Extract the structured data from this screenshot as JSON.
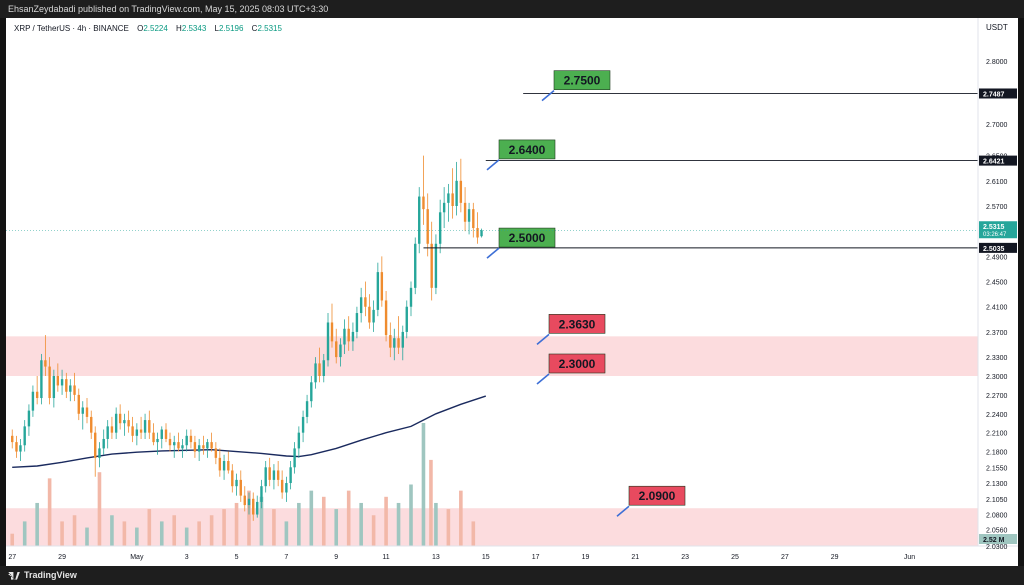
{
  "header": {
    "publisher_line": "EhsanZeydabadi published on TradingView.com, May 15, 2025 08:03 UTC+3:30"
  },
  "legend": {
    "symbol": "XRP / TetherUS · 4h · BINANCE",
    "open_label": "O",
    "open": "2.5224",
    "high_label": "H",
    "high": "2.5343",
    "low_label": "L",
    "low": "2.5196",
    "close_label": "C",
    "close": "2.5315"
  },
  "footer": {
    "brand": "TradingView"
  },
  "colors": {
    "up": "#26a69a",
    "down": "#ef8c2f",
    "ma": "#1a2a5e",
    "zone": "#fbd6d8",
    "label_green": "#4caf50",
    "label_red": "#e84a5f",
    "volume_up": "#9fc6c0",
    "volume_down": "#f2b8a8"
  },
  "chart_data": {
    "type": "candlestick",
    "symbol": "XRP / TetherUS",
    "timeframe": "4h",
    "exchange": "BINANCE",
    "currency": "USDT",
    "ylim": [
      2.03,
      2.84
    ],
    "y_ticks": [
      "2.8000",
      "2.7500",
      "2.7000",
      "2.6500",
      "2.6100",
      "2.5700",
      "2.5300",
      "2.4900",
      "2.4500",
      "2.4100",
      "2.3700",
      "2.3300",
      "2.3000",
      "2.2700",
      "2.2400",
      "2.2100",
      "2.1800",
      "2.1550",
      "2.1300",
      "2.1050",
      "2.0800",
      "2.0560",
      "2.0300"
    ],
    "x_ticks": [
      "27",
      "29",
      "May",
      "3",
      "5",
      "7",
      "9",
      "11",
      "13",
      "15",
      "17",
      "19",
      "21",
      "23",
      "25",
      "27",
      "29",
      "Jun"
    ],
    "x_tick_days": [
      -4,
      -2,
      1,
      3,
      5,
      7,
      9,
      11,
      13,
      15,
      17,
      19,
      21,
      23,
      25,
      27,
      29,
      32
    ],
    "x_range_days": [
      -4.25,
      34.75
    ],
    "candles": [
      [
        -4.0,
        2.205,
        2.215,
        2.185,
        2.195
      ],
      [
        -3.83,
        2.195,
        2.205,
        2.17,
        2.18
      ],
      [
        -3.67,
        2.18,
        2.2,
        2.165,
        2.19
      ],
      [
        -3.5,
        2.19,
        2.23,
        2.18,
        2.22
      ],
      [
        -3.33,
        2.22,
        2.255,
        2.205,
        2.245
      ],
      [
        -3.17,
        2.245,
        2.285,
        2.235,
        2.275
      ],
      [
        -3.0,
        2.275,
        2.3,
        2.255,
        2.265
      ],
      [
        -2.83,
        2.265,
        2.335,
        2.255,
        2.325
      ],
      [
        -2.67,
        2.325,
        2.365,
        2.3,
        2.315
      ],
      [
        -2.5,
        2.315,
        2.33,
        2.255,
        2.265
      ],
      [
        -2.33,
        2.265,
        2.31,
        2.25,
        2.3
      ],
      [
        -2.17,
        2.3,
        2.32,
        2.275,
        2.285
      ],
      [
        -2.0,
        2.285,
        2.31,
        2.27,
        2.295
      ],
      [
        -1.83,
        2.295,
        2.305,
        2.265,
        2.275
      ],
      [
        -1.67,
        2.275,
        2.295,
        2.26,
        2.285
      ],
      [
        -1.5,
        2.285,
        2.305,
        2.26,
        2.27
      ],
      [
        -1.33,
        2.27,
        2.28,
        2.23,
        2.24
      ],
      [
        -1.17,
        2.24,
        2.26,
        2.215,
        2.25
      ],
      [
        -1.0,
        2.25,
        2.265,
        2.225,
        2.235
      ],
      [
        -0.83,
        2.235,
        2.245,
        2.2,
        2.21
      ],
      [
        -0.67,
        2.21,
        2.22,
        2.14,
        2.17
      ],
      [
        -0.5,
        2.17,
        2.195,
        2.155,
        2.185
      ],
      [
        -0.33,
        2.185,
        2.215,
        2.175,
        2.2
      ],
      [
        -0.17,
        2.2,
        2.23,
        2.185,
        2.22
      ],
      [
        0.0,
        2.22,
        2.235,
        2.2,
        2.21
      ],
      [
        0.17,
        2.21,
        2.25,
        2.2,
        2.24
      ],
      [
        0.33,
        2.24,
        2.255,
        2.215,
        2.225
      ],
      [
        0.5,
        2.225,
        2.24,
        2.205,
        2.23
      ],
      [
        0.67,
        2.23,
        2.245,
        2.21,
        2.22
      ],
      [
        0.83,
        2.22,
        2.235,
        2.195,
        2.205
      ],
      [
        1.0,
        2.205,
        2.225,
        2.19,
        2.215
      ],
      [
        1.17,
        2.215,
        2.235,
        2.2,
        2.21
      ],
      [
        1.33,
        2.21,
        2.24,
        2.2,
        2.23
      ],
      [
        1.5,
        2.23,
        2.245,
        2.2,
        2.21
      ],
      [
        1.67,
        2.21,
        2.225,
        2.19,
        2.195
      ],
      [
        1.83,
        2.195,
        2.21,
        2.175,
        2.2
      ],
      [
        2.0,
        2.2,
        2.22,
        2.185,
        2.215
      ],
      [
        2.17,
        2.215,
        2.225,
        2.195,
        2.2
      ],
      [
        2.33,
        2.2,
        2.21,
        2.18,
        2.19
      ],
      [
        2.5,
        2.19,
        2.205,
        2.17,
        2.195
      ],
      [
        2.67,
        2.195,
        2.21,
        2.18,
        2.185
      ],
      [
        2.83,
        2.185,
        2.2,
        2.17,
        2.19
      ],
      [
        3.0,
        2.19,
        2.215,
        2.18,
        2.205
      ],
      [
        3.17,
        2.205,
        2.215,
        2.185,
        2.195
      ],
      [
        3.33,
        2.195,
        2.205,
        2.17,
        2.18
      ],
      [
        3.5,
        2.18,
        2.2,
        2.165,
        2.19
      ],
      [
        3.67,
        2.19,
        2.205,
        2.175,
        2.185
      ],
      [
        3.83,
        2.185,
        2.2,
        2.17,
        2.195
      ],
      [
        4.0,
        2.195,
        2.21,
        2.18,
        2.185
      ],
      [
        4.17,
        2.185,
        2.195,
        2.16,
        2.17
      ],
      [
        4.33,
        2.17,
        2.185,
        2.14,
        2.15
      ],
      [
        4.5,
        2.15,
        2.175,
        2.135,
        2.165
      ],
      [
        4.67,
        2.165,
        2.18,
        2.145,
        2.15
      ],
      [
        4.83,
        2.15,
        2.16,
        2.115,
        2.125
      ],
      [
        5.0,
        2.125,
        2.145,
        2.11,
        2.135
      ],
      [
        5.17,
        2.135,
        2.15,
        2.1,
        2.11
      ],
      [
        5.33,
        2.11,
        2.125,
        2.085,
        2.095
      ],
      [
        5.5,
        2.095,
        2.115,
        2.08,
        2.105
      ],
      [
        5.67,
        2.105,
        2.115,
        2.07,
        2.08
      ],
      [
        5.83,
        2.08,
        2.11,
        2.075,
        2.1
      ],
      [
        6.0,
        2.1,
        2.135,
        2.09,
        2.125
      ],
      [
        6.17,
        2.125,
        2.165,
        2.115,
        2.155
      ],
      [
        6.33,
        2.155,
        2.17,
        2.125,
        2.135
      ],
      [
        6.5,
        2.135,
        2.16,
        2.12,
        2.15
      ],
      [
        6.67,
        2.15,
        2.165,
        2.125,
        2.135
      ],
      [
        6.83,
        2.135,
        2.15,
        2.105,
        2.115
      ],
      [
        7.0,
        2.115,
        2.14,
        2.1,
        2.13
      ],
      [
        7.17,
        2.13,
        2.165,
        2.12,
        2.155
      ],
      [
        7.33,
        2.155,
        2.195,
        2.145,
        2.185
      ],
      [
        7.5,
        2.185,
        2.22,
        2.17,
        2.21
      ],
      [
        7.67,
        2.21,
        2.245,
        2.195,
        2.235
      ],
      [
        7.83,
        2.235,
        2.27,
        2.225,
        2.26
      ],
      [
        8.0,
        2.26,
        2.3,
        2.25,
        2.29
      ],
      [
        8.17,
        2.29,
        2.33,
        2.28,
        2.32
      ],
      [
        8.33,
        2.32,
        2.345,
        2.29,
        2.3
      ],
      [
        8.5,
        2.3,
        2.335,
        2.29,
        2.325
      ],
      [
        8.67,
        2.325,
        2.4,
        2.315,
        2.385
      ],
      [
        8.83,
        2.385,
        2.415,
        2.345,
        2.355
      ],
      [
        9.0,
        2.355,
        2.375,
        2.32,
        2.33
      ],
      [
        9.17,
        2.33,
        2.36,
        2.315,
        2.35
      ],
      [
        9.33,
        2.35,
        2.39,
        2.335,
        2.375
      ],
      [
        9.5,
        2.375,
        2.395,
        2.34,
        2.355
      ],
      [
        9.67,
        2.355,
        2.385,
        2.34,
        2.37
      ],
      [
        9.83,
        2.37,
        2.41,
        2.36,
        2.4
      ],
      [
        10.0,
        2.4,
        2.44,
        2.385,
        2.425
      ],
      [
        10.17,
        2.425,
        2.45,
        2.395,
        2.41
      ],
      [
        10.33,
        2.41,
        2.43,
        2.375,
        2.385
      ],
      [
        10.5,
        2.385,
        2.42,
        2.37,
        2.405
      ],
      [
        10.67,
        2.405,
        2.48,
        2.395,
        2.465
      ],
      [
        10.83,
        2.465,
        2.49,
        2.41,
        2.42
      ],
      [
        11.0,
        2.42,
        2.435,
        2.355,
        2.365
      ],
      [
        11.17,
        2.365,
        2.385,
        2.33,
        2.345
      ],
      [
        11.33,
        2.345,
        2.375,
        2.325,
        2.36
      ],
      [
        11.5,
        2.36,
        2.395,
        2.335,
        2.345
      ],
      [
        11.67,
        2.345,
        2.38,
        2.325,
        2.37
      ],
      [
        11.83,
        2.37,
        2.42,
        2.36,
        2.41
      ],
      [
        12.0,
        2.41,
        2.45,
        2.395,
        2.44
      ],
      [
        12.17,
        2.44,
        2.52,
        2.43,
        2.51
      ],
      [
        12.33,
        2.51,
        2.6,
        2.495,
        2.585
      ],
      [
        12.5,
        2.585,
        2.65,
        2.54,
        2.565
      ],
      [
        12.67,
        2.565,
        2.59,
        2.49,
        2.51
      ],
      [
        12.83,
        2.51,
        2.545,
        2.42,
        2.44
      ],
      [
        13.0,
        2.44,
        2.525,
        2.43,
        2.51
      ],
      [
        13.17,
        2.51,
        2.58,
        2.495,
        2.56
      ],
      [
        13.33,
        2.56,
        2.6,
        2.535,
        2.575
      ],
      [
        13.5,
        2.575,
        2.605,
        2.545,
        2.59
      ],
      [
        13.67,
        2.59,
        2.63,
        2.55,
        2.57
      ],
      [
        13.83,
        2.57,
        2.64,
        2.555,
        2.61
      ],
      [
        14.0,
        2.61,
        2.645,
        2.56,
        2.575
      ],
      [
        14.17,
        2.575,
        2.6,
        2.53,
        2.545
      ],
      [
        14.33,
        2.545,
        2.575,
        2.525,
        2.565
      ],
      [
        14.5,
        2.565,
        2.575,
        2.52,
        2.535
      ],
      [
        14.67,
        2.535,
        2.56,
        2.51,
        2.52
      ],
      [
        14.83,
        2.522,
        2.534,
        2.52,
        2.5315
      ]
    ],
    "volume": [
      [
        -4.0,
        0.1,
        0
      ],
      [
        -3.5,
        0.2,
        1
      ],
      [
        -3.0,
        0.35,
        1
      ],
      [
        -2.5,
        0.55,
        0
      ],
      [
        -2.0,
        0.2,
        0
      ],
      [
        -1.5,
        0.25,
        0
      ],
      [
        -1.0,
        0.15,
        1
      ],
      [
        -0.5,
        0.6,
        0
      ],
      [
        0.0,
        0.25,
        1
      ],
      [
        0.5,
        0.2,
        0
      ],
      [
        1.0,
        0.15,
        1
      ],
      [
        1.5,
        0.3,
        0
      ],
      [
        2.0,
        0.2,
        1
      ],
      [
        2.5,
        0.25,
        0
      ],
      [
        3.0,
        0.15,
        1
      ],
      [
        3.5,
        0.2,
        0
      ],
      [
        4.0,
        0.25,
        0
      ],
      [
        4.5,
        0.3,
        0
      ],
      [
        5.0,
        0.35,
        0
      ],
      [
        5.5,
        0.45,
        0
      ],
      [
        6.0,
        0.4,
        1
      ],
      [
        6.5,
        0.3,
        0
      ],
      [
        7.0,
        0.2,
        1
      ],
      [
        7.5,
        0.35,
        1
      ],
      [
        8.0,
        0.45,
        1
      ],
      [
        8.5,
        0.4,
        0
      ],
      [
        9.0,
        0.3,
        1
      ],
      [
        9.5,
        0.45,
        0
      ],
      [
        10.0,
        0.35,
        1
      ],
      [
        10.5,
        0.25,
        0
      ],
      [
        11.0,
        0.4,
        0
      ],
      [
        11.5,
        0.35,
        1
      ],
      [
        12.0,
        0.5,
        1
      ],
      [
        12.5,
        1.0,
        1
      ],
      [
        12.8,
        0.7,
        0
      ],
      [
        13.0,
        0.35,
        1
      ],
      [
        13.5,
        0.3,
        0
      ],
      [
        14.0,
        0.45,
        0
      ],
      [
        14.5,
        0.2,
        0
      ]
    ],
    "moving_average": [
      [
        -4.0,
        2.155
      ],
      [
        -3.0,
        2.157
      ],
      [
        -2.0,
        2.163
      ],
      [
        -1.0,
        2.17
      ],
      [
        0.0,
        2.176
      ],
      [
        1.0,
        2.179
      ],
      [
        2.0,
        2.181
      ],
      [
        3.0,
        2.182
      ],
      [
        4.0,
        2.183
      ],
      [
        5.0,
        2.18
      ],
      [
        6.0,
        2.177
      ],
      [
        7.0,
        2.173
      ],
      [
        7.5,
        2.172
      ],
      [
        8.0,
        2.175
      ],
      [
        9.0,
        2.185
      ],
      [
        10.0,
        2.198
      ],
      [
        11.0,
        2.21
      ],
      [
        12.0,
        2.22
      ],
      [
        13.0,
        2.24
      ],
      [
        14.0,
        2.255
      ],
      [
        15.0,
        2.268
      ]
    ],
    "zones": [
      {
        "y0": 2.3,
        "y1": 2.363,
        "x0": -4.25
      },
      {
        "y0": 2.03,
        "y1": 2.09,
        "x0": -4.25
      }
    ],
    "levels": [
      {
        "value": 2.75,
        "label": "2.7500",
        "style": "green",
        "line_from_day": 16.5,
        "axis_tag": "2.7487",
        "tag_value": 2.7487
      },
      {
        "value": 2.64,
        "label": "2.6400",
        "style": "green",
        "line_from_day": 15.0,
        "axis_tag": "2.6421",
        "tag_value": 2.6421
      },
      {
        "value": 2.5,
        "label": "2.5000",
        "style": "green",
        "line_from_day": 12.5,
        "axis_tag": "2.5035",
        "tag_value": 2.5035
      },
      {
        "value": 2.363,
        "label": "2.3630",
        "style": "red"
      },
      {
        "value": 2.3,
        "label": "2.3000",
        "style": "red"
      },
      {
        "value": 2.09,
        "label": "2.0900",
        "style": "red"
      }
    ],
    "current_price": {
      "value": "2.5315",
      "countdown": "03:26:47",
      "num": 2.5315
    },
    "volume_tag": "2.52 M",
    "annotations": []
  }
}
